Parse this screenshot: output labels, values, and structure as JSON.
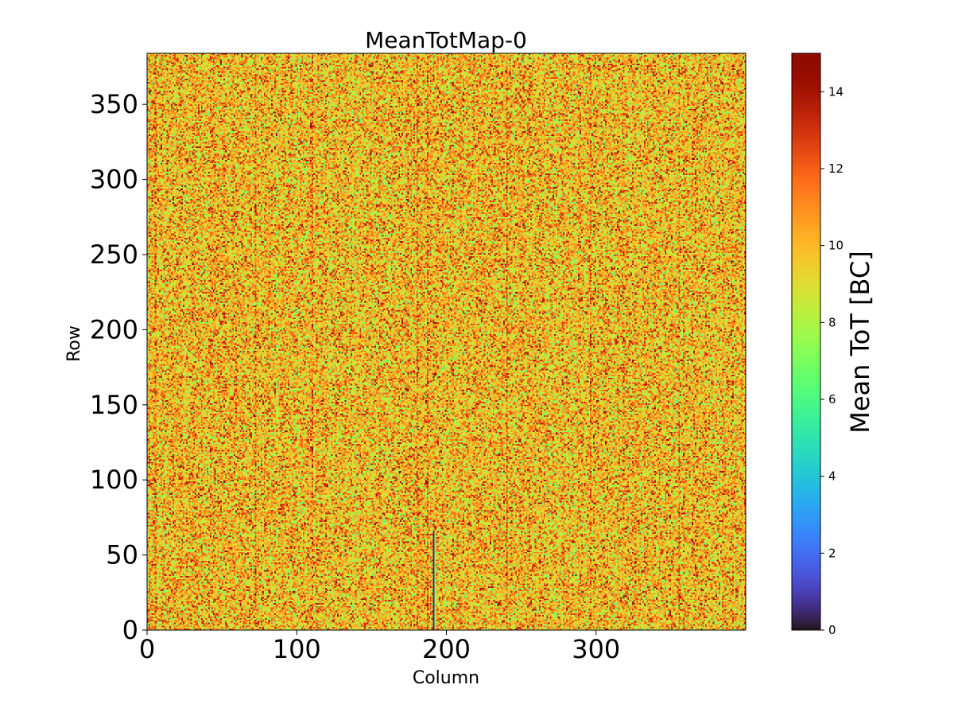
{
  "chart_data": {
    "type": "heatmap",
    "title": "MeanTotMap-0",
    "xlabel": "Column",
    "ylabel": "Row",
    "xlim": [
      0,
      400
    ],
    "ylim": [
      0,
      384
    ],
    "x_ticks": [
      0,
      100,
      200,
      300
    ],
    "y_ticks": [
      0,
      50,
      100,
      150,
      200,
      250,
      300,
      350
    ],
    "grid": false,
    "colormap": "turbo",
    "colorbar": {
      "label": "Mean ToT [BC]",
      "range": [
        0,
        15
      ],
      "ticks": [
        0,
        2,
        4,
        6,
        8,
        10,
        12,
        14
      ]
    },
    "value_distribution": {
      "typical_range": [
        6,
        14
      ],
      "dominant_values": [
        8,
        10,
        12
      ]
    },
    "features": [
      {
        "description": "dark (low ToT) vertical streak",
        "column": 191,
        "row_range": [
          0,
          65
        ],
        "value": 0.5
      },
      {
        "description": "warmer vertical column bands",
        "columns": [
          5,
          72,
          110,
          180,
          187,
          240,
          296,
          355
        ],
        "value_shift": 1.5
      }
    ]
  }
}
